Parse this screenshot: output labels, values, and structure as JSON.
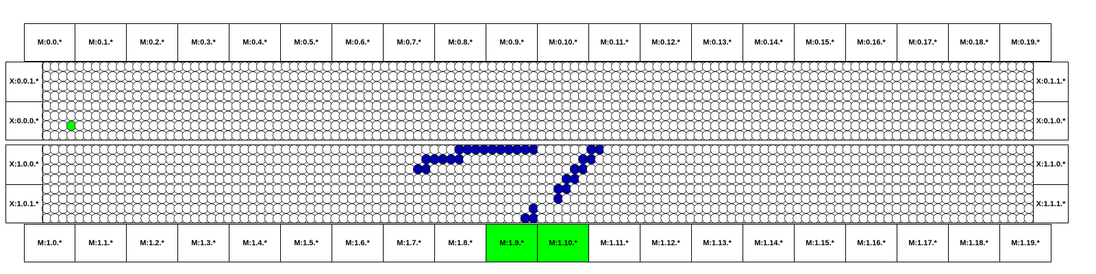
{
  "colors": {
    "highlight": "#00ff00",
    "path": "#0000aa",
    "cell_outline": "#000000",
    "background": "#ffffff"
  },
  "top_labels": [
    "M:0.0.*",
    "M:0.1.*",
    "M:0.2.*",
    "M:0.3.*",
    "M:0.4.*",
    "M:0.5.*",
    "M:0.6.*",
    "M:0.7.*",
    "M:0.8.*",
    "M:0.9.*",
    "M:0.10.*",
    "M:0.11.*",
    "M:0.12.*",
    "M:0.13.*",
    "M:0.14.*",
    "M:0.15.*",
    "M:0.16.*",
    "M:0.17.*",
    "M:0.18.*",
    "M:0.19.*"
  ],
  "bottom_labels": [
    "M:1.0.*",
    "M:1.1.*",
    "M:1.2.*",
    "M:1.3.*",
    "M:1.4.*",
    "M:1.5.*",
    "M:1.6.*",
    "M:1.7.*",
    "M:1.8.*",
    "M:1.9.*",
    "M:1.10.*",
    "M:1.11.*",
    "M:1.12.*",
    "M:1.13.*",
    "M:1.14.*",
    "M:1.15.*",
    "M:1.16.*",
    "M:1.17.*",
    "M:1.18.*",
    "M:1.19.*"
  ],
  "bottom_highlighted": [
    9,
    10
  ],
  "left_labels": [
    [
      "X:0.0.1.*",
      "X:0.0.0.*"
    ],
    [
      "X:1.0.0.*",
      "X:1.0.1.*"
    ]
  ],
  "right_labels": [
    [
      "X:0.1.1.*",
      "X:0.1.0.*"
    ],
    [
      "X:1.1.0.*",
      "X:1.1.1.*"
    ]
  ],
  "grid": {
    "columns": 120,
    "rows_per_block": 8
  },
  "green_nodes": [
    [
      0,
      6,
      3
    ]
  ],
  "blue_nodes": [
    [
      1,
      2,
      45
    ],
    [
      1,
      2,
      46
    ],
    [
      1,
      1,
      46
    ],
    [
      1,
      1,
      47
    ],
    [
      1,
      1,
      48
    ],
    [
      1,
      1,
      49
    ],
    [
      1,
      1,
      50
    ],
    [
      1,
      0,
      50
    ],
    [
      1,
      0,
      51
    ],
    [
      1,
      0,
      52
    ],
    [
      1,
      0,
      53
    ],
    [
      1,
      0,
      54
    ],
    [
      1,
      0,
      55
    ],
    [
      1,
      0,
      56
    ],
    [
      1,
      0,
      57
    ],
    [
      1,
      0,
      58
    ],
    [
      1,
      0,
      59
    ],
    [
      1,
      0,
      66
    ],
    [
      1,
      0,
      67
    ],
    [
      1,
      1,
      65
    ],
    [
      1,
      1,
      66
    ],
    [
      1,
      2,
      64
    ],
    [
      1,
      2,
      65
    ],
    [
      1,
      3,
      63
    ],
    [
      1,
      3,
      64
    ],
    [
      1,
      4,
      62
    ],
    [
      1,
      4,
      63
    ],
    [
      1,
      5,
      62
    ],
    [
      1,
      7,
      58
    ],
    [
      1,
      7,
      59
    ],
    [
      1,
      6,
      59
    ]
  ]
}
